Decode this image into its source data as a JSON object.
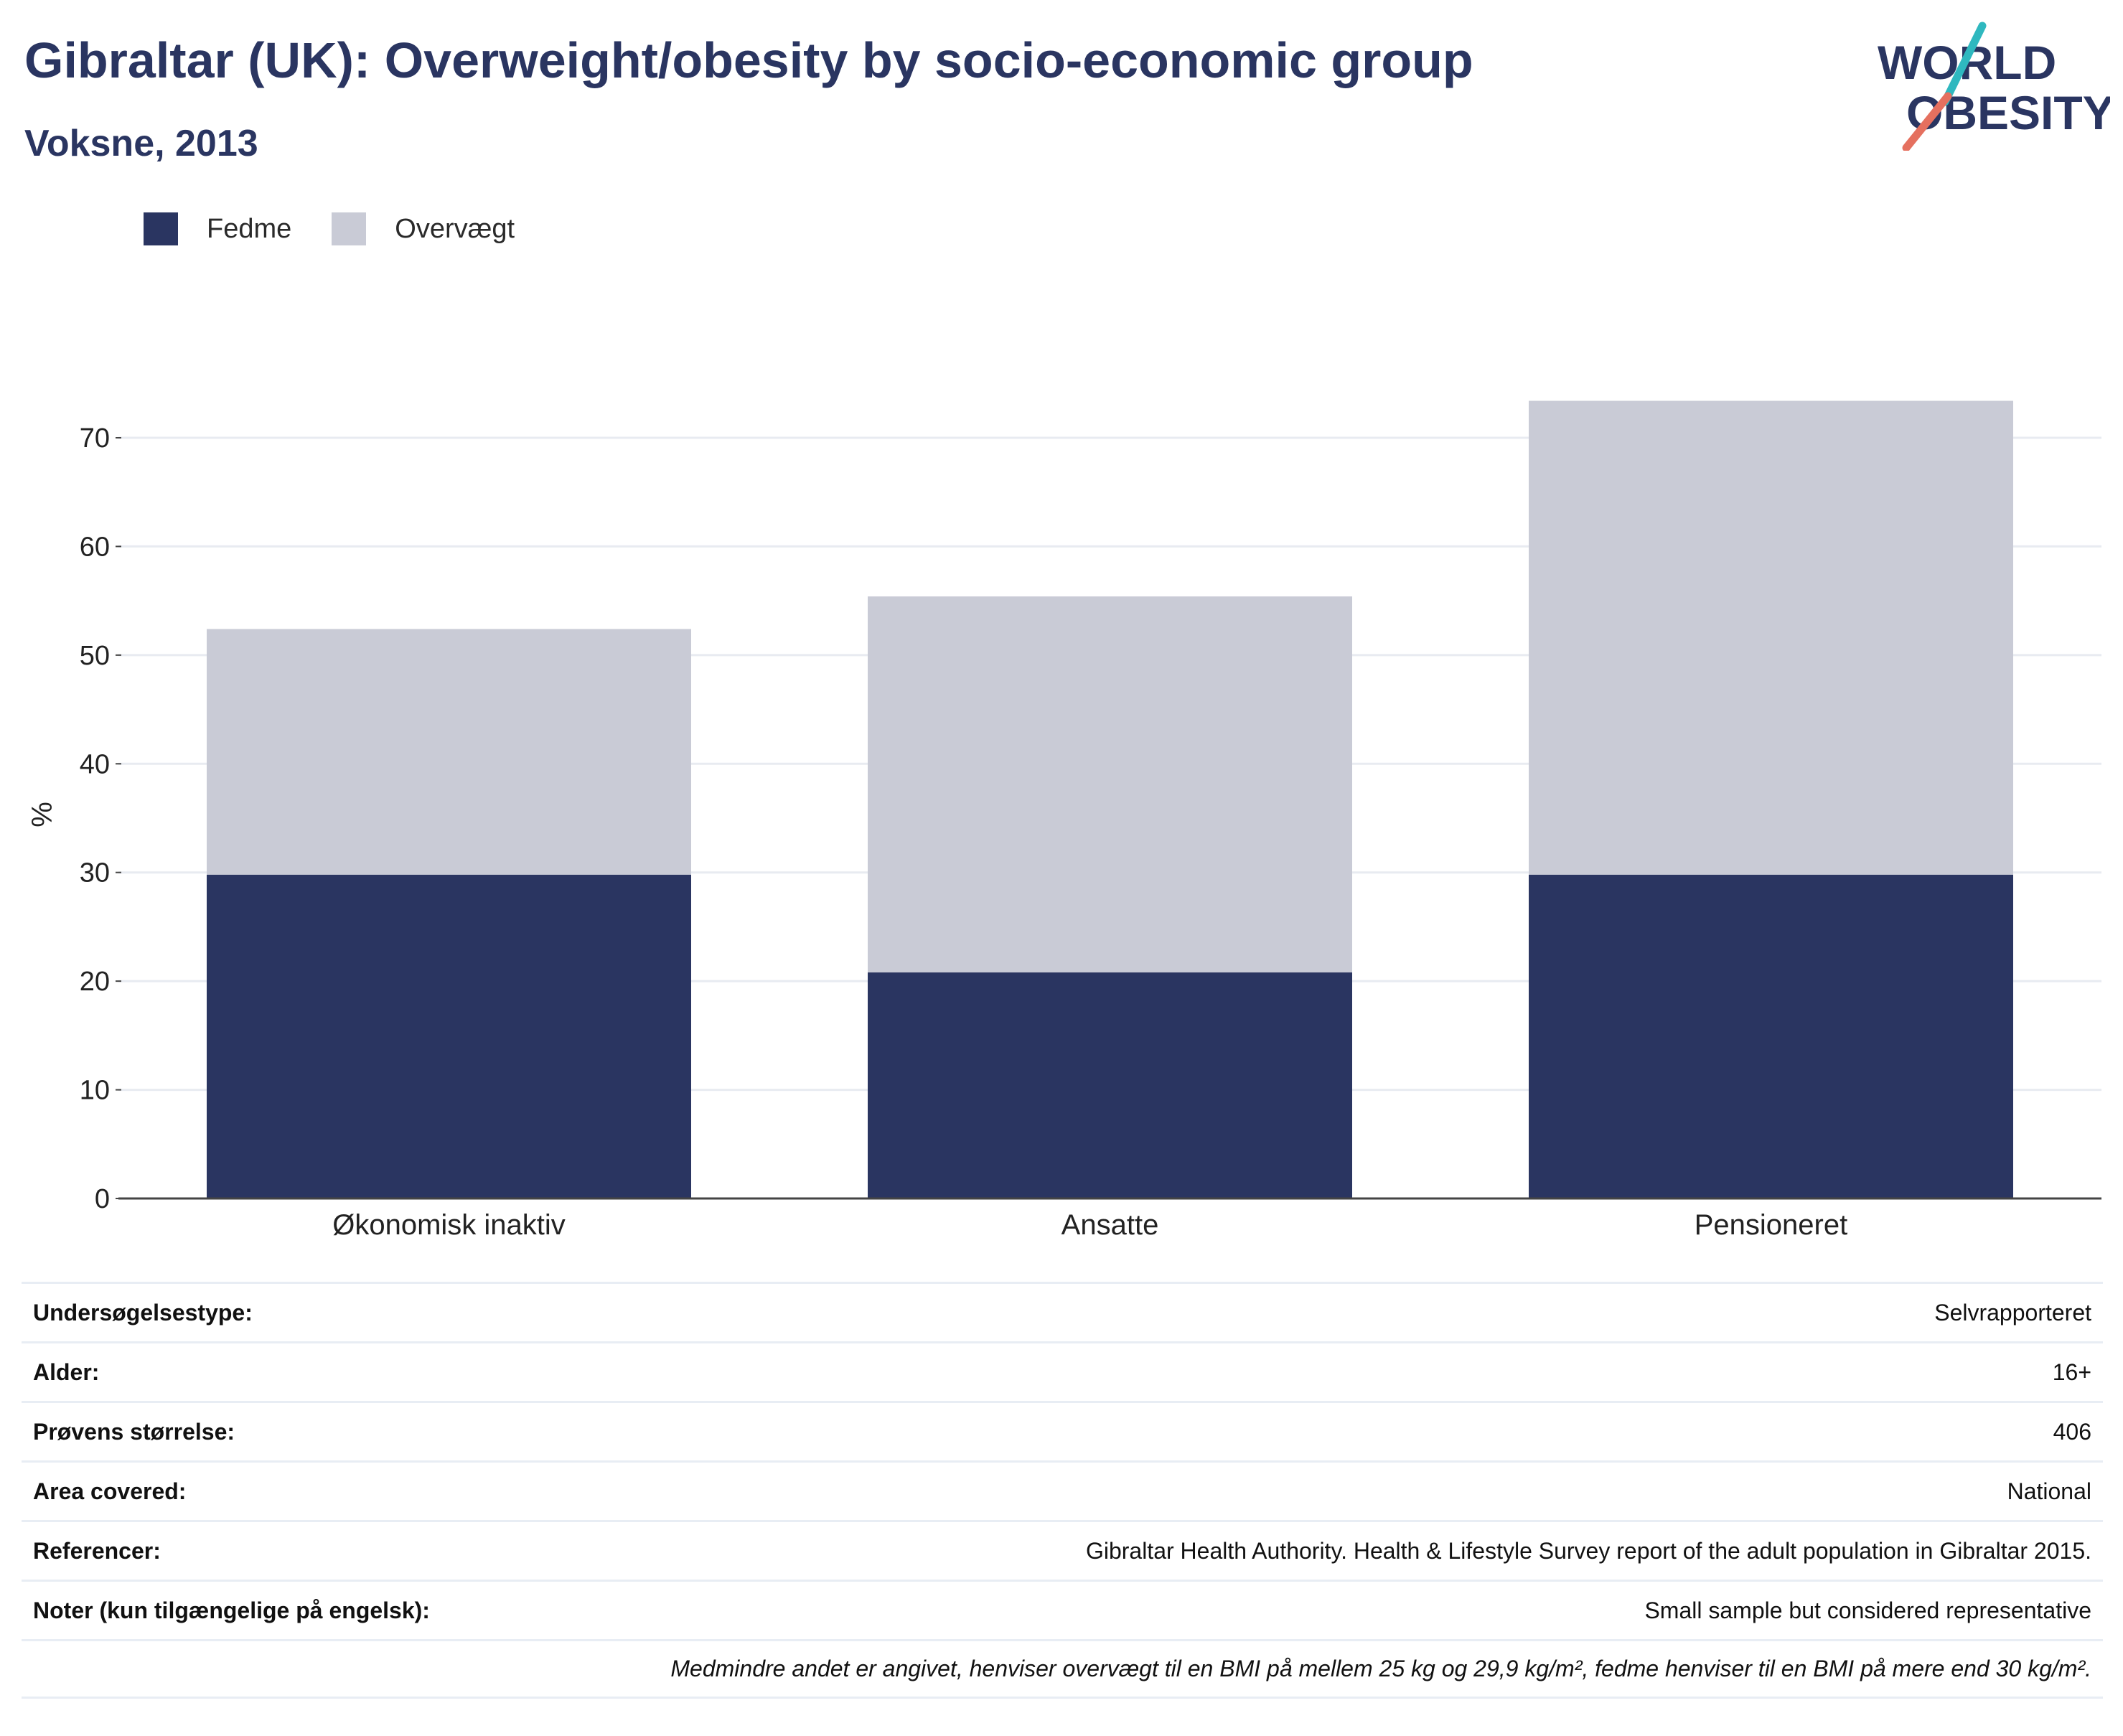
{
  "header": {
    "title": "Gibraltar (UK): Overweight/obesity by socio-economic group",
    "subtitle": "Voksne, 2013"
  },
  "logo": {
    "line1": "WORLD",
    "line2": "OBESITY",
    "accent_colors": [
      "#2fb8bf",
      "#e5705f"
    ]
  },
  "legend": [
    {
      "label": "Fedme",
      "color": "#2a3561"
    },
    {
      "label": "Overvægt",
      "color": "#c9cbd6"
    }
  ],
  "chart_data": {
    "type": "bar",
    "stacked": true,
    "categories": [
      "Økonomisk inaktiv",
      "Ansatte",
      "Pensioneret"
    ],
    "series": [
      {
        "name": "Fedme",
        "values": [
          29.8,
          20.8,
          29.8
        ],
        "color": "#2a3561"
      },
      {
        "name": "Overvægt",
        "values": [
          22.6,
          34.6,
          43.6
        ],
        "color": "#c9cbd6"
      }
    ],
    "ylabel": "%",
    "ylim": [
      0,
      75
    ],
    "yticks": [
      0,
      10,
      20,
      30,
      40,
      50,
      60,
      70
    ],
    "grid": true,
    "legend_position": "top-left"
  },
  "meta": [
    {
      "key": "Undersøgelsestype:",
      "value": "Selvrapporteret"
    },
    {
      "key": "Alder:",
      "value": "16+"
    },
    {
      "key": "Prøvens størrelse:",
      "value": "406"
    },
    {
      "key": "Area covered:",
      "value": "National"
    },
    {
      "key": "Referencer:",
      "value": "Gibraltar Health Authority. Health & Lifestyle Survey report of the adult population in Gibraltar 2015."
    },
    {
      "key": "Noter (kun tilgængelige på engelsk):",
      "value": "Small sample but considered representative"
    }
  ],
  "footnote": "Medmindre andet er angivet, henviser overvægt til en BMI på mellem 25 kg og 29,9 kg/m², fedme henviser til en BMI på mere end 30 kg/m²."
}
